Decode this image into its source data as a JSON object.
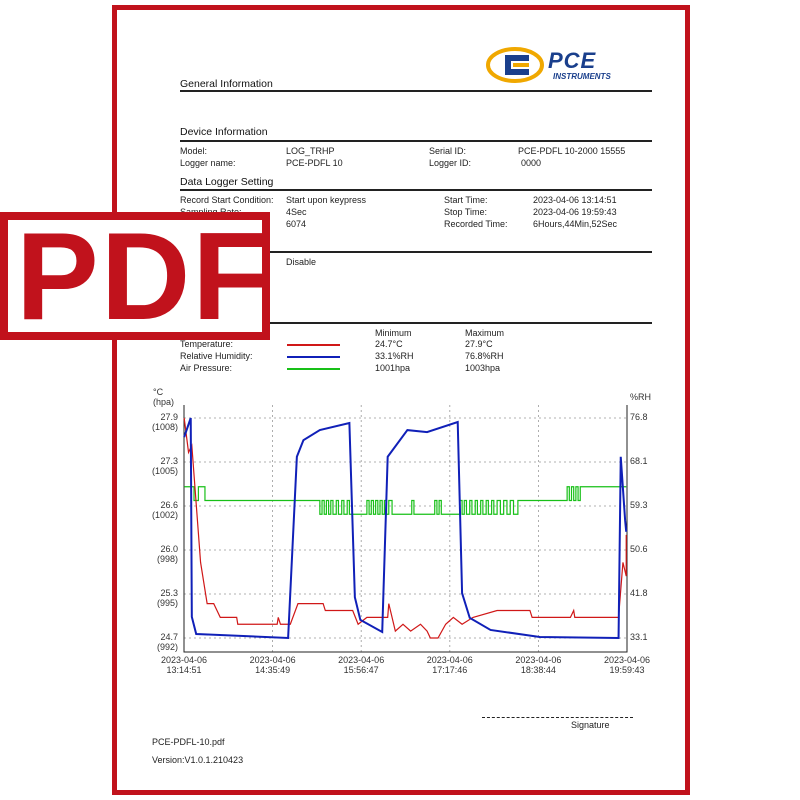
{
  "logo": {
    "brand": "PCE",
    "sub": "INSTRUMENTS"
  },
  "badge": {
    "text": "PDF"
  },
  "sections": {
    "general": "General Information",
    "device": "Device Information",
    "logger": "Data Logger Setting"
  },
  "device": {
    "model_label": "Model:",
    "model": "LOG_TRHP",
    "logger_name_label": "Logger name:",
    "logger_name": "PCE-PDFL 10",
    "serial_label": "Serial ID:",
    "serial": "PCE-PDFL 10-2000 15555",
    "logger_id_label": "Logger ID:",
    "logger_id": "0000"
  },
  "setting": {
    "start_cond_label": "Record Start Condition:",
    "start_cond": "Start upon keypress",
    "rate_label": "Sampling Rate:",
    "rate": "4Sec",
    "count": "6074",
    "start_label": "Start Time:",
    "start": "2023-04-06 13:14:51",
    "stop_label": "Stop Time:",
    "stop": "2023-04-06 19:59:43",
    "recorded_label": "Recorded Time:",
    "recorded": "6Hours,44Min,52Sec",
    "alarm": "Disable"
  },
  "summary": {
    "min_header": "Minimum",
    "max_header": "Maximum",
    "rows": [
      {
        "label": "Temperature:",
        "color": "#d01818",
        "min": "24.7°C",
        "max": "27.9°C"
      },
      {
        "label": "Relative Humidity:",
        "color": "#1020b8",
        "min": "33.1%RH",
        "max": "76.8%RH"
      },
      {
        "label": "Air Pressure:",
        "color": "#18c018",
        "min": "1001hpa",
        "max": "1003hpa"
      }
    ]
  },
  "chart_data": {
    "type": "line",
    "grid": true,
    "left_unit": "°C",
    "left_unit2": "(hpa)",
    "right_unit": "%RH",
    "left_ticks": [
      "27.9",
      "27.3",
      "26.6",
      "26.0",
      "25.3",
      "24.7"
    ],
    "left_ticks2": [
      "(1008)",
      "(1005)",
      "(1002)",
      "(998)",
      "(995)",
      "(992)"
    ],
    "right_ticks": [
      "76.8",
      "68.1",
      "59.3",
      "50.6",
      "41.8",
      "33.1"
    ],
    "x_ticks": [
      [
        "2023-04-06",
        "13:14:51"
      ],
      [
        "2023-04-06",
        "14:35:49"
      ],
      [
        "2023-04-06",
        "15:56:47"
      ],
      [
        "2023-04-06",
        "17:17:46"
      ],
      [
        "2023-04-06",
        "18:38:44"
      ],
      [
        "2023-04-06",
        "19:59:43"
      ]
    ],
    "x_range": [
      "13:14:51",
      "19:59:43"
    ],
    "temp_range": [
      24.7,
      27.9
    ],
    "rh_range": [
      33.1,
      76.8
    ],
    "pressure_range": [
      992,
      1008
    ],
    "temperature": [
      [
        "13:15",
        27.9
      ],
      [
        "13:19",
        27.4
      ],
      [
        "13:22",
        27.5
      ],
      [
        "13:30",
        25.8
      ],
      [
        "13:36",
        25.2
      ],
      [
        "13:42",
        25.2
      ],
      [
        "13:48",
        25.0
      ],
      [
        "14:03",
        25.0
      ],
      [
        "14:04",
        24.9
      ],
      [
        "14:40",
        24.9
      ],
      [
        "14:41",
        25.0
      ],
      [
        "14:43",
        24.9
      ],
      [
        "14:52",
        24.9
      ],
      [
        "14:59",
        25.2
      ],
      [
        "15:22",
        25.2
      ],
      [
        "15:24",
        25.1
      ],
      [
        "15:49",
        25.1
      ],
      [
        "15:54",
        24.9
      ],
      [
        "16:02",
        25.0
      ],
      [
        "16:21",
        25.0
      ],
      [
        "16:22",
        25.2
      ],
      [
        "16:28",
        24.8
      ],
      [
        "16:35",
        24.9
      ],
      [
        "16:42",
        24.8
      ],
      [
        "16:51",
        24.9
      ],
      [
        "16:57",
        24.8
      ],
      [
        "17:00",
        24.7
      ],
      [
        "17:07",
        24.7
      ],
      [
        "17:14",
        24.9
      ],
      [
        "17:21",
        25.0
      ],
      [
        "17:29",
        24.9
      ],
      [
        "17:39",
        25.0
      ],
      [
        "18:01",
        25.1
      ],
      [
        "18:31",
        25.1
      ],
      [
        "18:33",
        25.0
      ],
      [
        "19:08",
        25.0
      ],
      [
        "19:11",
        25.1
      ],
      [
        "19:12",
        25.0
      ],
      [
        "19:52",
        25.0
      ],
      [
        "19:56",
        25.8
      ],
      [
        "19:59",
        25.6
      ],
      [
        "19:59",
        26.2
      ]
    ],
    "humidity": [
      [
        "13:15",
        73.0
      ],
      [
        "13:21",
        76.8
      ],
      [
        "13:22",
        37.3
      ],
      [
        "13:26",
        33.9
      ],
      [
        "14:50",
        33.1
      ],
      [
        "14:58",
        69.1
      ],
      [
        "15:04",
        72.4
      ],
      [
        "15:19",
        74.4
      ],
      [
        "15:46",
        75.8
      ],
      [
        "15:51",
        41.2
      ],
      [
        "15:56",
        36.7
      ],
      [
        "16:16",
        34.3
      ],
      [
        "16:21",
        69.1
      ],
      [
        "16:39",
        74.4
      ],
      [
        "16:57",
        74.0
      ],
      [
        "17:25",
        76.0
      ],
      [
        "17:29",
        42.0
      ],
      [
        "17:36",
        37.1
      ],
      [
        "17:55",
        34.7
      ],
      [
        "18:40",
        33.3
      ],
      [
        "19:52",
        33.1
      ],
      [
        "19:54",
        69.1
      ],
      [
        "19:58",
        56.5
      ],
      [
        "19:59",
        54.2
      ]
    ],
    "pressure": [
      [
        "13:15",
        1003
      ],
      [
        "13:24",
        1002
      ],
      [
        "13:28",
        1003
      ],
      [
        "13:34",
        1002
      ],
      [
        "15:19",
        1001
      ],
      [
        "15:21",
        1002
      ],
      [
        "15:23",
        1001
      ],
      [
        "15:25",
        1002
      ],
      [
        "15:27",
        1001
      ],
      [
        "15:29",
        1002
      ],
      [
        "15:31",
        1001
      ],
      [
        "15:34",
        1002
      ],
      [
        "15:36",
        1001
      ],
      [
        "15:39",
        1002
      ],
      [
        "15:41",
        1001
      ],
      [
        "15:44",
        1002
      ],
      [
        "15:46",
        1001
      ],
      [
        "16:02",
        1002
      ],
      [
        "16:04",
        1001
      ],
      [
        "16:06",
        1002
      ],
      [
        "16:08",
        1001
      ],
      [
        "16:10",
        1002
      ],
      [
        "16:12",
        1001
      ],
      [
        "16:14",
        1002
      ],
      [
        "16:16",
        1001
      ],
      [
        "16:18",
        1002
      ],
      [
        "16:20",
        1001
      ],
      [
        "16:22",
        1002
      ],
      [
        "16:25",
        1001
      ],
      [
        "16:43",
        1002
      ],
      [
        "16:45",
        1001
      ],
      [
        "17:04",
        1002
      ],
      [
        "17:06",
        1001
      ],
      [
        "17:08",
        1002
      ],
      [
        "17:10",
        1001
      ],
      [
        "17:27",
        1002
      ],
      [
        "17:29",
        1001
      ],
      [
        "17:31",
        1002
      ],
      [
        "17:33",
        1001
      ],
      [
        "17:36",
        1002
      ],
      [
        "17:38",
        1001
      ],
      [
        "17:41",
        1002
      ],
      [
        "17:43",
        1001
      ],
      [
        "17:46",
        1002
      ],
      [
        "17:48",
        1001
      ],
      [
        "17:51",
        1002
      ],
      [
        "17:53",
        1001
      ],
      [
        "17:56",
        1002
      ],
      [
        "17:58",
        1001
      ],
      [
        "18:01",
        1002
      ],
      [
        "18:04",
        1001
      ],
      [
        "18:07",
        1002
      ],
      [
        "18:10",
        1001
      ],
      [
        "18:13",
        1002
      ],
      [
        "18:16",
        1001
      ],
      [
        "18:20",
        1002
      ],
      [
        "19:05",
        1003
      ],
      [
        "19:07",
        1002
      ],
      [
        "19:09",
        1003
      ],
      [
        "19:11",
        1002
      ],
      [
        "19:13",
        1003
      ],
      [
        "19:15",
        1002
      ],
      [
        "19:17",
        1003
      ],
      [
        "19:59",
        1003
      ]
    ]
  },
  "footer": {
    "signature": "Signature",
    "filename": "PCE-PDFL-10.pdf",
    "version": "Version:V1.0.1.210423"
  }
}
